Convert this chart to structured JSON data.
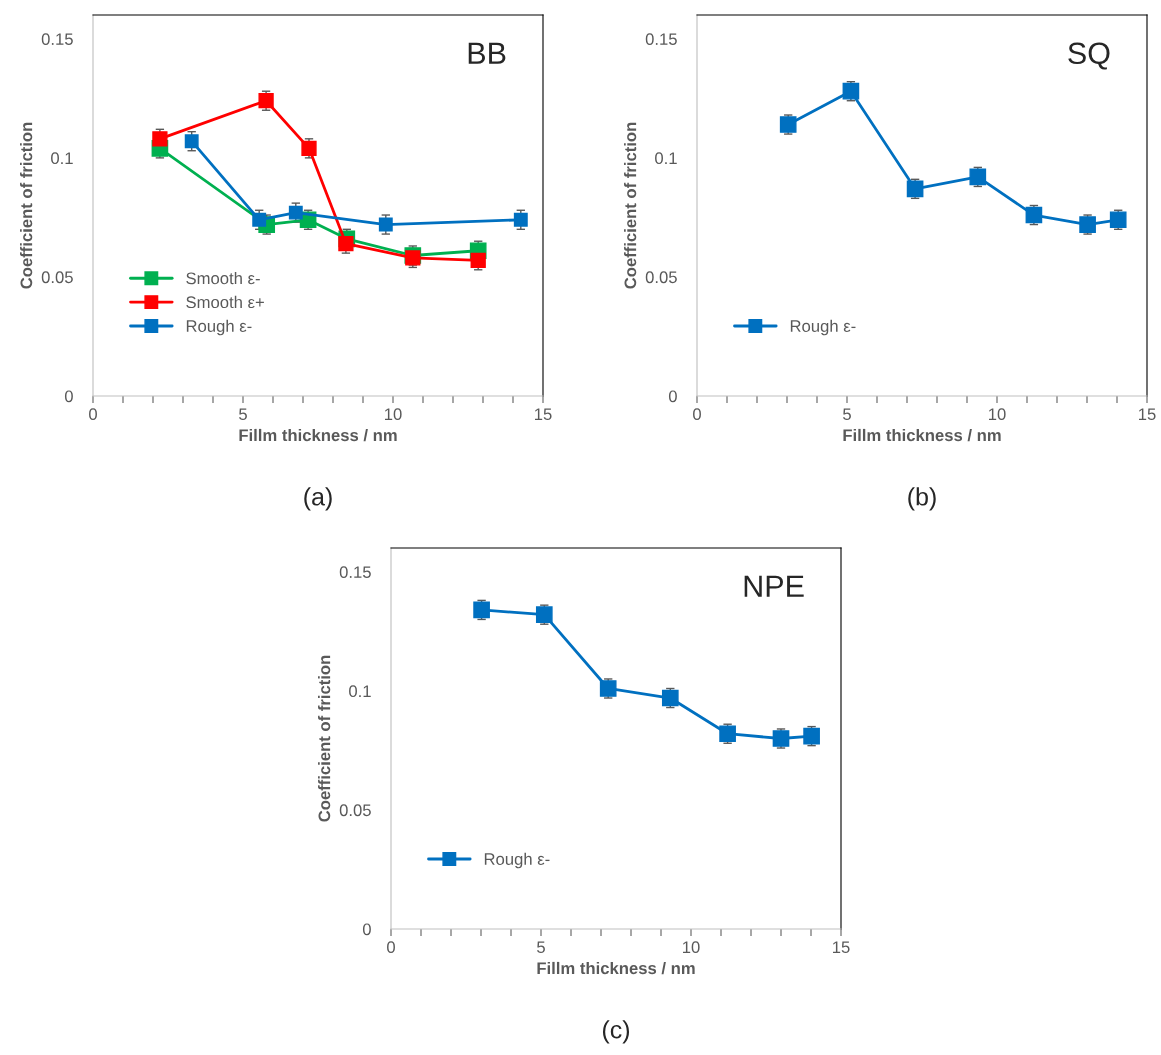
{
  "chart_data": [
    {
      "type": "line",
      "title": "BB",
      "xlabel": "Fillm thickness / nm",
      "ylabel": "Coefficient of friction",
      "annotations": [
        "(a)"
      ],
      "xlim": [
        0,
        15
      ],
      "ylim": [
        0,
        0.16
      ],
      "xticks": [
        0,
        {
          "value": 1,
          "label": null
        },
        {
          "value": 2,
          "label": null
        },
        {
          "value": 3,
          "label": null
        },
        {
          "value": 4,
          "label": null
        },
        5,
        {
          "value": 6,
          "label": null
        },
        {
          "value": 7,
          "label": null
        },
        {
          "value": 8,
          "label": null
        },
        {
          "value": 9,
          "label": null
        },
        10,
        {
          "value": 11,
          "label": null
        },
        {
          "value": 12,
          "label": null
        },
        {
          "value": 13,
          "label": null
        },
        {
          "value": 14,
          "label": null
        },
        15
      ],
      "yticks": [
        0,
        0.05,
        0.1,
        0.15
      ],
      "grid": false,
      "legend": "bottom left",
      "marker": "square",
      "line_style": "solid",
      "series": [
        {
          "name": "Smooth ε-",
          "color": "#00b050",
          "x": [
            2.23,
            5.79,
            7.17,
            8.46,
            10.66,
            12.84
          ],
          "values": [
            0.104,
            0.072,
            0.074,
            0.066,
            0.059,
            0.061
          ],
          "errors": [
            0.004,
            0.004,
            0.004,
            0.004,
            0.004,
            0.004
          ]
        },
        {
          "name": "Smooth ε+",
          "color": "#ff0000",
          "x": [
            2.23,
            5.77,
            7.2,
            8.43,
            10.66,
            12.84
          ],
          "values": [
            0.108,
            0.124,
            0.104,
            0.064,
            0.058,
            0.057
          ],
          "errors": [
            0.004,
            0.004,
            0.004,
            0.004,
            0.004,
            0.004
          ]
        },
        {
          "name": "Rough ε-",
          "color": "#0070c0",
          "x": [
            3.29,
            5.54,
            6.76,
            9.76,
            14.26
          ],
          "values": [
            0.107,
            0.074,
            0.077,
            0.072,
            0.074
          ],
          "errors": [
            0.004,
            0.004,
            0.004,
            0.004,
            0.004
          ]
        }
      ]
    },
    {
      "type": "line",
      "title": "SQ",
      "xlabel": "Fillm thickness / nm",
      "ylabel": "Coefficient of friction",
      "annotations": [
        "(b)"
      ],
      "xlim": [
        0,
        15
      ],
      "ylim": [
        0,
        0.16
      ],
      "xticks": [
        0,
        {
          "value": 1,
          "label": null
        },
        {
          "value": 2,
          "label": null
        },
        {
          "value": 3,
          "label": null
        },
        {
          "value": 4,
          "label": null
        },
        5,
        {
          "value": 6,
          "label": null
        },
        {
          "value": 7,
          "label": null
        },
        {
          "value": 8,
          "label": null
        },
        {
          "value": 9,
          "label": null
        },
        10,
        {
          "value": 11,
          "label": null
        },
        {
          "value": 12,
          "label": null
        },
        {
          "value": 13,
          "label": null
        },
        {
          "value": 14,
          "label": null
        },
        15
      ],
      "yticks": [
        0,
        0.05,
        0.1,
        0.15
      ],
      "grid": false,
      "legend": "bottom left",
      "marker": "square",
      "line_style": "solid",
      "series": [
        {
          "name": "Rough ε-",
          "color": "#0070c0",
          "x": [
            3.04,
            5.13,
            7.27,
            9.36,
            11.23,
            13.02,
            14.04
          ],
          "values": [
            0.114,
            0.128,
            0.087,
            0.092,
            0.076,
            0.072,
            0.074
          ],
          "errors": [
            0.004,
            0.004,
            0.004,
            0.004,
            0.004,
            0.004,
            0.004
          ]
        }
      ]
    },
    {
      "type": "line",
      "title": "NPE",
      "xlabel": "Fillm thickness / nm",
      "ylabel": "Coefficient of friction",
      "annotations": [
        "(c)"
      ],
      "xlim": [
        0,
        15
      ],
      "ylim": [
        0,
        0.16
      ],
      "xticks": [
        0,
        {
          "value": 1,
          "label": null
        },
        {
          "value": 2,
          "label": null
        },
        {
          "value": 3,
          "label": null
        },
        {
          "value": 4,
          "label": null
        },
        5,
        {
          "value": 6,
          "label": null
        },
        {
          "value": 7,
          "label": null
        },
        {
          "value": 8,
          "label": null
        },
        {
          "value": 9,
          "label": null
        },
        10,
        {
          "value": 11,
          "label": null
        },
        {
          "value": 12,
          "label": null
        },
        {
          "value": 13,
          "label": null
        },
        {
          "value": 14,
          "label": null
        },
        15
      ],
      "yticks": [
        0,
        0.05,
        0.1,
        0.15
      ],
      "grid": false,
      "legend": "bottom left",
      "marker": "square",
      "line_style": "solid",
      "series": [
        {
          "name": "Rough ε-",
          "color": "#0070c0",
          "x": [
            3.02,
            5.11,
            7.24,
            9.31,
            11.22,
            13.0,
            14.02
          ],
          "values": [
            0.134,
            0.132,
            0.101,
            0.097,
            0.082,
            0.08,
            0.081
          ],
          "errors": [
            0.004,
            0.004,
            0.004,
            0.004,
            0.004,
            0.004,
            0.004
          ]
        }
      ]
    }
  ]
}
